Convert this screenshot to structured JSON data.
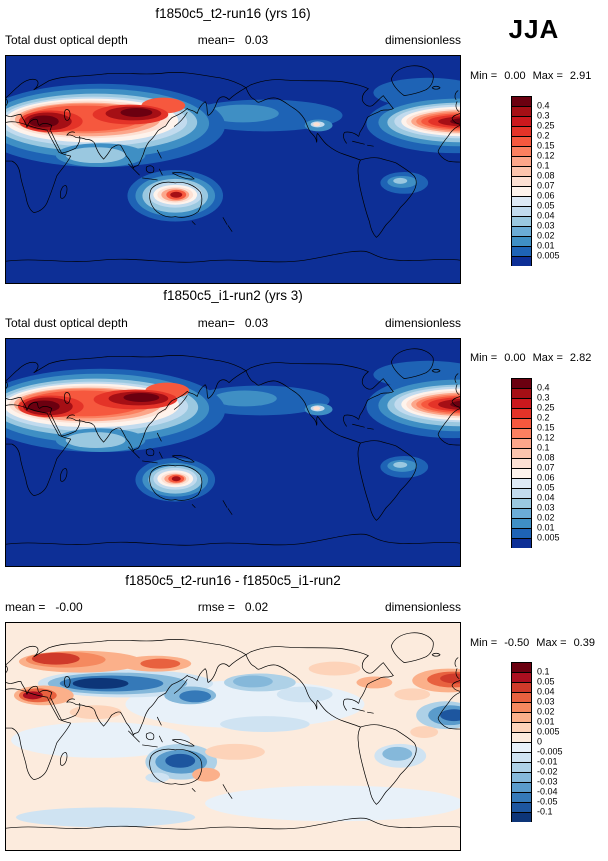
{
  "season_label": "JJA",
  "panels": [
    {
      "title": "f1850c5_t2-run16 (yrs 16)",
      "stats": {
        "left": "Total dust optical depth",
        "center_label": "mean=",
        "center_value": "0.03",
        "right": "dimensionless"
      },
      "min_label": "Min =",
      "min_value": "0.00",
      "max_label": "Max =",
      "max_value": "2.91",
      "colorbar_labels": [
        "0.4",
        "0.3",
        "0.25",
        "0.2",
        "0.15",
        "0.12",
        "0.1",
        "0.08",
        "0.07",
        "0.06",
        "0.05",
        "0.04",
        "0.03",
        "0.02",
        "0.01",
        "0.005"
      ],
      "colorbar_colors": [
        "#6b0010",
        "#a50f15",
        "#cb181d",
        "#e43328",
        "#f6583e",
        "#fb8060",
        "#fca68a",
        "#fcc4ad",
        "#fde0d3",
        "#fef3ec",
        "#dde9f5",
        "#c2dbee",
        "#9ac8e0",
        "#6bacd6",
        "#3f8fc4",
        "#1e63b5",
        "#0d2f96"
      ]
    },
    {
      "title": "f1850c5_i1-run2 (yrs 3)",
      "stats": {
        "left": "Total dust optical depth",
        "center_label": "mean=",
        "center_value": "0.03",
        "right": "dimensionless"
      },
      "min_label": "Min =",
      "min_value": "0.00",
      "max_label": "Max =",
      "max_value": "2.82",
      "colorbar_labels": [
        "0.4",
        "0.3",
        "0.25",
        "0.2",
        "0.15",
        "0.12",
        "0.1",
        "0.08",
        "0.07",
        "0.06",
        "0.05",
        "0.04",
        "0.03",
        "0.02",
        "0.01",
        "0.005"
      ],
      "colorbar_colors": [
        "#6b0010",
        "#a50f15",
        "#cb181d",
        "#e43328",
        "#f6583e",
        "#fb8060",
        "#fca68a",
        "#fcc4ad",
        "#fde0d3",
        "#fef3ec",
        "#dde9f5",
        "#c2dbee",
        "#9ac8e0",
        "#6bacd6",
        "#3f8fc4",
        "#1e63b5",
        "#0d2f96"
      ]
    },
    {
      "title": "f1850c5_t2-run16 - f1850c5_i1-run2",
      "stats": {
        "left_label": "mean =",
        "left_value": "-0.00",
        "center_label": "rmse =",
        "center_value": "0.02",
        "right": "dimensionless"
      },
      "min_label": "Min =",
      "min_value": "-0.50",
      "max_label": "Max =",
      "max_value": "0.39",
      "colorbar_labels": [
        "0.1",
        "0.05",
        "0.04",
        "0.03",
        "0.02",
        "0.01",
        "0.005",
        "0",
        "-0.005",
        "-0.01",
        "-0.02",
        "-0.03",
        "-0.04",
        "-0.05",
        "-0.1"
      ],
      "colorbar_colors": [
        "#6b0010",
        "#ab0f20",
        "#cf3a2a",
        "#e8613f",
        "#f5895f",
        "#fbb08a",
        "#fdd3b9",
        "#fcebdd",
        "#e8f1f9",
        "#cfe3f2",
        "#aed1e7",
        "#85b8da",
        "#5a9bcb",
        "#3579b8",
        "#1d569f",
        "#0d3578"
      ]
    }
  ],
  "chart_data": [
    {
      "type": "heatmap",
      "title": "f1850c5_t2-run16 (yrs 16)",
      "variable": "Total dust optical depth",
      "units": "dimensionless",
      "season": "JJA",
      "projection": "global latitude-longitude map, 0-360E",
      "legend_position": "right",
      "stats": {
        "mean": 0.03,
        "min": 0.0,
        "max": 2.91
      },
      "contour_levels": [
        0.005,
        0.01,
        0.02,
        0.03,
        0.04,
        0.05,
        0.06,
        0.07,
        0.08,
        0.1,
        0.12,
        0.15,
        0.2,
        0.25,
        0.3,
        0.4
      ],
      "high_value_regions": [
        "North Africa / Atlantic dust plume (right map edge)",
        "Arabian Peninsula and South Asia",
        "Taklamakan-Gobi deserts of East Asia",
        "Central Australia"
      ]
    },
    {
      "type": "heatmap",
      "title": "f1850c5_i1-run2 (yrs 3)",
      "variable": "Total dust optical depth",
      "units": "dimensionless",
      "season": "JJA",
      "projection": "global latitude-longitude map, 0-360E",
      "legend_position": "right",
      "stats": {
        "mean": 0.03,
        "min": 0.0,
        "max": 2.82
      },
      "contour_levels": [
        0.005,
        0.01,
        0.02,
        0.03,
        0.04,
        0.05,
        0.06,
        0.07,
        0.08,
        0.1,
        0.12,
        0.15,
        0.2,
        0.25,
        0.3,
        0.4
      ],
      "high_value_regions": [
        "North Africa / Atlantic dust plume (right map edge)",
        "Arabian Peninsula and South Asia",
        "Taklamakan-Gobi deserts of East Asia",
        "Central Australia"
      ]
    },
    {
      "type": "heatmap",
      "title": "f1850c5_t2-run16 - f1850c5_i1-run2",
      "variable": "Total dust optical depth difference",
      "units": "dimensionless",
      "season": "JJA",
      "projection": "global latitude-longitude map, 0-360E",
      "legend_position": "right",
      "stats": {
        "mean": -0.0,
        "rmse": 0.02,
        "min": -0.5,
        "max": 0.39
      },
      "contour_levels": [
        -0.1,
        -0.05,
        -0.04,
        -0.03,
        -0.02,
        -0.01,
        -0.005,
        0,
        0.005,
        0.01,
        0.02,
        0.03,
        0.04,
        0.05,
        0.1
      ],
      "notes": "Mixed positive (red) and negative (blue) differences over Asian dust belt, Atlantic plume, and Australia"
    }
  ]
}
